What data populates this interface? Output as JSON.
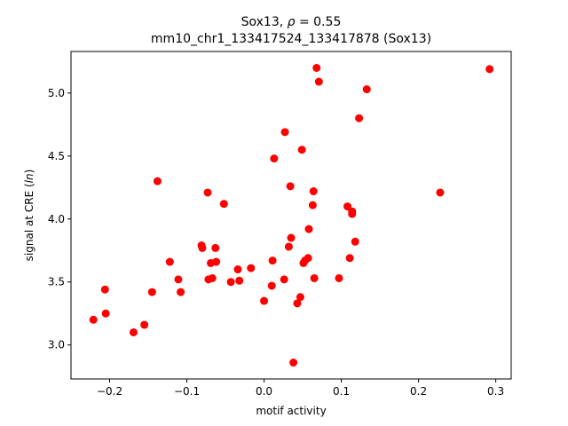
{
  "chart_data": {
    "type": "scatter",
    "title_prefix": "Sox13, ",
    "title_rho_symbol": "ρ",
    "title_rho_value": " = 0.55",
    "subtitle": "mm10_chr1_133417524_133417878 (Sox13)",
    "xlabel": "motif activity",
    "ylabel_prefix": "signal at CRE (",
    "ylabel_italic": "ln",
    "ylabel_suffix": ")",
    "xlim": [
      -0.25,
      0.32
    ],
    "ylim": [
      2.73,
      5.33
    ],
    "xticks": [
      -0.2,
      -0.1,
      0.0,
      0.1,
      0.2,
      0.3
    ],
    "xtick_labels": [
      "−0.2",
      "−0.1",
      "0.0",
      "0.1",
      "0.2",
      "0.3"
    ],
    "yticks": [
      3.0,
      3.5,
      4.0,
      4.5,
      5.0
    ],
    "ytick_labels": [
      "3.0",
      "3.5",
      "4.0",
      "4.5",
      "5.0"
    ],
    "grid": false,
    "marker_color": "#ff0000",
    "points": [
      {
        "x": -0.221,
        "y": 3.2
      },
      {
        "x": -0.206,
        "y": 3.44
      },
      {
        "x": -0.205,
        "y": 3.25
      },
      {
        "x": -0.169,
        "y": 3.1
      },
      {
        "x": -0.155,
        "y": 3.16
      },
      {
        "x": -0.145,
        "y": 3.42
      },
      {
        "x": -0.138,
        "y": 4.3
      },
      {
        "x": -0.122,
        "y": 3.66
      },
      {
        "x": -0.111,
        "y": 3.52
      },
      {
        "x": -0.108,
        "y": 3.42
      },
      {
        "x": -0.081,
        "y": 3.79
      },
      {
        "x": -0.08,
        "y": 3.77
      },
      {
        "x": -0.073,
        "y": 4.21
      },
      {
        "x": -0.072,
        "y": 3.52
      },
      {
        "x": -0.069,
        "y": 3.65
      },
      {
        "x": -0.067,
        "y": 3.53
      },
      {
        "x": -0.063,
        "y": 3.77
      },
      {
        "x": -0.062,
        "y": 3.66
      },
      {
        "x": -0.052,
        "y": 4.12
      },
      {
        "x": -0.043,
        "y": 3.5
      },
      {
        "x": -0.034,
        "y": 3.6
      },
      {
        "x": -0.032,
        "y": 3.51
      },
      {
        "x": -0.017,
        "y": 3.61
      },
      {
        "x": 0.0,
        "y": 3.35
      },
      {
        "x": 0.01,
        "y": 3.47
      },
      {
        "x": 0.011,
        "y": 3.67
      },
      {
        "x": 0.013,
        "y": 4.48
      },
      {
        "x": 0.026,
        "y": 3.52
      },
      {
        "x": 0.027,
        "y": 4.69
      },
      {
        "x": 0.032,
        "y": 3.78
      },
      {
        "x": 0.034,
        "y": 4.26
      },
      {
        "x": 0.035,
        "y": 3.85
      },
      {
        "x": 0.038,
        "y": 2.86
      },
      {
        "x": 0.043,
        "y": 3.33
      },
      {
        "x": 0.047,
        "y": 3.38
      },
      {
        "x": 0.049,
        "y": 4.55
      },
      {
        "x": 0.051,
        "y": 3.65
      },
      {
        "x": 0.053,
        "y": 3.67
      },
      {
        "x": 0.057,
        "y": 3.69
      },
      {
        "x": 0.058,
        "y": 3.92
      },
      {
        "x": 0.063,
        "y": 4.11
      },
      {
        "x": 0.064,
        "y": 4.22
      },
      {
        "x": 0.065,
        "y": 3.53
      },
      {
        "x": 0.068,
        "y": 5.2
      },
      {
        "x": 0.071,
        "y": 5.09
      },
      {
        "x": 0.097,
        "y": 3.53
      },
      {
        "x": 0.108,
        "y": 4.1
      },
      {
        "x": 0.111,
        "y": 3.69
      },
      {
        "x": 0.114,
        "y": 4.06
      },
      {
        "x": 0.114,
        "y": 4.04
      },
      {
        "x": 0.118,
        "y": 3.82
      },
      {
        "x": 0.123,
        "y": 4.8
      },
      {
        "x": 0.133,
        "y": 5.03
      },
      {
        "x": 0.228,
        "y": 4.21
      },
      {
        "x": 0.292,
        "y": 5.19
      }
    ]
  }
}
